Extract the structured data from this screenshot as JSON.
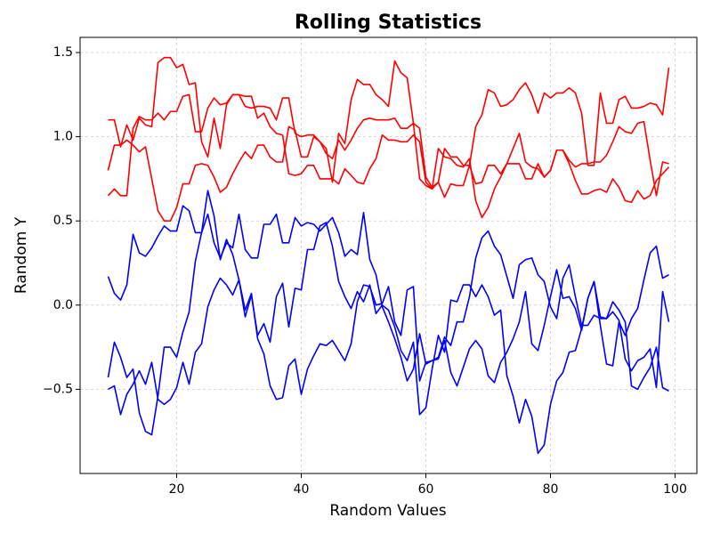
{
  "chart_data": {
    "type": "line",
    "title": "Rolling Statistics",
    "x_label": "Random Values",
    "y_label": "Random Y",
    "x": [
      9,
      10,
      11,
      12,
      13,
      14,
      15,
      16,
      17,
      18,
      19,
      20,
      21,
      22,
      23,
      24,
      25,
      26,
      27,
      28,
      29,
      30,
      31,
      32,
      33,
      34,
      35,
      36,
      37,
      38,
      39,
      40,
      41,
      42,
      43,
      44,
      45,
      46,
      47,
      48,
      49,
      50,
      51,
      52,
      53,
      54,
      55,
      56,
      57,
      58,
      59,
      60,
      61,
      62,
      63,
      64,
      65,
      66,
      67,
      68,
      69,
      70,
      71,
      72,
      73,
      74,
      75,
      76,
      77,
      78,
      79,
      80,
      81,
      82,
      83,
      84,
      85,
      86,
      87,
      88,
      89,
      90,
      91,
      92,
      93,
      94,
      95,
      96,
      97,
      98,
      99
    ],
    "series": [
      {
        "color": "red",
        "values": [
          1.1,
          1.1,
          0.94,
          1.07,
          0.98,
          1.11,
          1.07,
          1.06,
          1.44,
          1.47,
          1.47,
          1.41,
          1.43,
          1.31,
          1.32,
          0.97,
          0.88,
          1.11,
          0.93,
          1.19,
          1.25,
          1.25,
          1.18,
          1.17,
          1.18,
          1.18,
          1.17,
          1.1,
          1.23,
          1.23,
          1.02,
          1.0,
          1.01,
          1.01,
          0.97,
          0.93,
          0.73,
          1.02,
          0.96,
          1.22,
          1.34,
          1.31,
          1.31,
          1.25,
          1.22,
          1.18,
          1.45,
          1.38,
          1.35,
          1.08,
          1.05,
          0.76,
          0.7,
          0.73,
          0.93,
          0.88,
          0.88,
          0.83,
          0.83,
          1.06,
          1.13,
          1.28,
          1.26,
          1.18,
          1.19,
          1.22,
          1.28,
          1.32,
          1.25,
          1.14,
          1.26,
          1.23,
          1.26,
          1.26,
          1.29,
          1.26,
          1.14,
          0.83,
          0.83,
          1.26,
          1.08,
          1.08,
          1.22,
          1.24,
          1.17,
          1.17,
          1.18,
          1.2,
          1.19,
          1.13,
          1.41
        ]
      },
      {
        "color": "red",
        "values": [
          0.8,
          0.95,
          0.95,
          0.98,
          0.95,
          0.91,
          0.94,
          0.75,
          0.56,
          0.5,
          0.5,
          0.58,
          0.72,
          0.72,
          0.83,
          0.84,
          0.83,
          0.76,
          0.67,
          0.7,
          0.78,
          0.85,
          0.91,
          0.87,
          0.95,
          0.95,
          0.88,
          0.85,
          0.85,
          1.06,
          1.04,
          0.88,
          0.88,
          1.0,
          0.97,
          0.9,
          0.87,
          0.98,
          0.92,
          0.98,
          1.05,
          1.1,
          1.11,
          1.1,
          1.1,
          1.1,
          1.11,
          1.05,
          1.05,
          1.08,
          0.75,
          0.71,
          0.69,
          0.73,
          0.64,
          0.72,
          0.71,
          0.71,
          0.83,
          0.72,
          0.73,
          0.83,
          0.83,
          0.78,
          0.84,
          0.84,
          0.84,
          0.75,
          0.75,
          0.84,
          0.76,
          0.8,
          0.92,
          0.92,
          0.86,
          0.82,
          0.84,
          0.84,
          0.85,
          0.85,
          0.89,
          0.97,
          1.06,
          1.03,
          1.02,
          1.08,
          1.09,
          0.86,
          0.65,
          0.85,
          0.84
        ]
      },
      {
        "color": "red",
        "values": [
          0.65,
          0.69,
          0.65,
          0.65,
          1.05,
          1.12,
          1.1,
          1.1,
          1.14,
          1.1,
          1.15,
          1.15,
          1.24,
          1.25,
          1.03,
          1.03,
          1.17,
          1.23,
          1.19,
          1.2,
          1.25,
          1.25,
          1.24,
          1.24,
          1.11,
          1.14,
          1.06,
          1.02,
          1.01,
          0.78,
          0.77,
          0.78,
          0.83,
          0.83,
          0.75,
          0.75,
          0.75,
          0.72,
          0.81,
          0.77,
          0.73,
          0.72,
          0.81,
          0.87,
          1.01,
          0.98,
          0.98,
          0.97,
          0.97,
          1.01,
          0.97,
          0.73,
          0.69,
          0.93,
          0.88,
          0.87,
          0.83,
          0.82,
          0.87,
          0.62,
          0.52,
          0.58,
          0.69,
          0.76,
          0.84,
          0.93,
          1.02,
          0.85,
          0.82,
          0.81,
          0.76,
          0.8,
          0.92,
          0.92,
          0.84,
          0.74,
          0.66,
          0.66,
          0.68,
          0.69,
          0.67,
          0.75,
          0.7,
          0.62,
          0.61,
          0.68,
          0.63,
          0.65,
          0.74,
          0.78,
          0.82
        ]
      },
      {
        "color": "blue",
        "values": [
          0.17,
          0.07,
          0.03,
          0.12,
          0.42,
          0.31,
          0.29,
          0.34,
          0.41,
          0.47,
          0.44,
          0.44,
          0.59,
          0.56,
          0.43,
          0.43,
          0.54,
          0.37,
          0.28,
          0.37,
          0.34,
          0.54,
          0.33,
          0.28,
          0.28,
          0.48,
          0.48,
          0.54,
          0.37,
          0.37,
          0.52,
          0.47,
          0.49,
          0.48,
          0.44,
          0.48,
          0.52,
          0.43,
          0.29,
          0.33,
          0.3,
          0.55,
          0.27,
          0.18,
          -0.01,
          -0.1,
          -0.2,
          -0.31,
          -0.45,
          -0.38,
          -0.17,
          -0.35,
          -0.33,
          -0.31,
          -0.19,
          -0.24,
          -0.1,
          -0.1,
          0.05,
          0.28,
          0.4,
          0.44,
          0.35,
          0.3,
          0.17,
          0.04,
          0.24,
          0.27,
          0.28,
          0.18,
          0.14,
          -0.01,
          -0.08,
          0.16,
          0.24,
          0.05,
          -0.12,
          -0.12,
          -0.06,
          -0.08,
          -0.08,
          -0.04,
          -0.09,
          -0.32,
          -0.39,
          -0.33,
          -0.31,
          -0.26,
          -0.49,
          0.08,
          -0.1
        ]
      },
      {
        "color": "blue",
        "values": [
          -0.43,
          -0.22,
          -0.31,
          -0.43,
          -0.38,
          -0.64,
          -0.75,
          -0.77,
          -0.54,
          -0.25,
          -0.25,
          -0.31,
          -0.16,
          -0.04,
          0.26,
          0.43,
          0.68,
          0.53,
          0.27,
          0.39,
          0.3,
          0.15,
          -0.03,
          0.07,
          -0.2,
          -0.29,
          -0.48,
          -0.56,
          -0.55,
          -0.36,
          -0.32,
          -0.53,
          -0.38,
          -0.3,
          -0.23,
          -0.24,
          -0.21,
          -0.27,
          -0.33,
          -0.23,
          0.02,
          0.12,
          0.11,
          0.0,
          0.01,
          0.11,
          -0.1,
          -0.18,
          0.09,
          0.11,
          -0.45,
          -0.34,
          -0.33,
          -0.32,
          -0.21,
          -0.4,
          -0.48,
          -0.37,
          -0.26,
          -0.21,
          -0.26,
          -0.42,
          -0.46,
          -0.34,
          -0.28,
          -0.2,
          -0.1,
          0.08,
          -0.23,
          -0.27,
          -0.12,
          0.05,
          0.21,
          0.04,
          0.05,
          -0.02,
          -0.15,
          0.04,
          0.14,
          -0.12,
          -0.35,
          -0.36,
          -0.1,
          -0.18,
          -0.08,
          -0.02,
          0.15,
          0.31,
          0.35,
          0.16,
          0.18
        ]
      },
      {
        "color": "blue",
        "values": [
          -0.5,
          -0.48,
          -0.65,
          -0.53,
          -0.47,
          -0.39,
          -0.47,
          -0.34,
          -0.56,
          -0.59,
          -0.56,
          -0.49,
          -0.34,
          -0.47,
          -0.28,
          -0.23,
          -0.01,
          0.09,
          0.16,
          0.12,
          0.06,
          0.15,
          -0.07,
          0.06,
          -0.18,
          -0.11,
          -0.22,
          0.05,
          0.13,
          -0.13,
          0.1,
          0.09,
          0.33,
          0.33,
          0.47,
          0.49,
          0.35,
          0.14,
          0.05,
          -0.02,
          0.08,
          0.02,
          0.12,
          -0.05,
          0.0,
          -0.03,
          -0.13,
          -0.27,
          -0.33,
          -0.22,
          -0.65,
          -0.61,
          -0.38,
          -0.18,
          -0.28,
          0.03,
          0.02,
          0.12,
          0.12,
          0.05,
          0.12,
          0.05,
          -0.06,
          -0.03,
          -0.42,
          -0.54,
          -0.7,
          -0.56,
          -0.66,
          -0.88,
          -0.83,
          -0.59,
          -0.45,
          -0.4,
          -0.28,
          -0.27,
          -0.14,
          0.04,
          0.14,
          -0.07,
          -0.08,
          0.02,
          -0.03,
          -0.1,
          -0.48,
          -0.5,
          -0.43,
          -0.37,
          -0.25,
          -0.49,
          -0.51
        ]
      }
    ],
    "xlim": [
      4.5,
      103.5
    ],
    "ylim": [
      -1.0,
      1.59
    ],
    "xticks": [
      20,
      40,
      60,
      80,
      100
    ],
    "yticks": [
      {
        "value": -0.5,
        "label": "−0.5"
      },
      {
        "value": 0.0,
        "label": "0.0"
      },
      0.5,
      {
        "value": 1.0,
        "label": "1.0"
      },
      1.5
    ],
    "grid": true
  }
}
